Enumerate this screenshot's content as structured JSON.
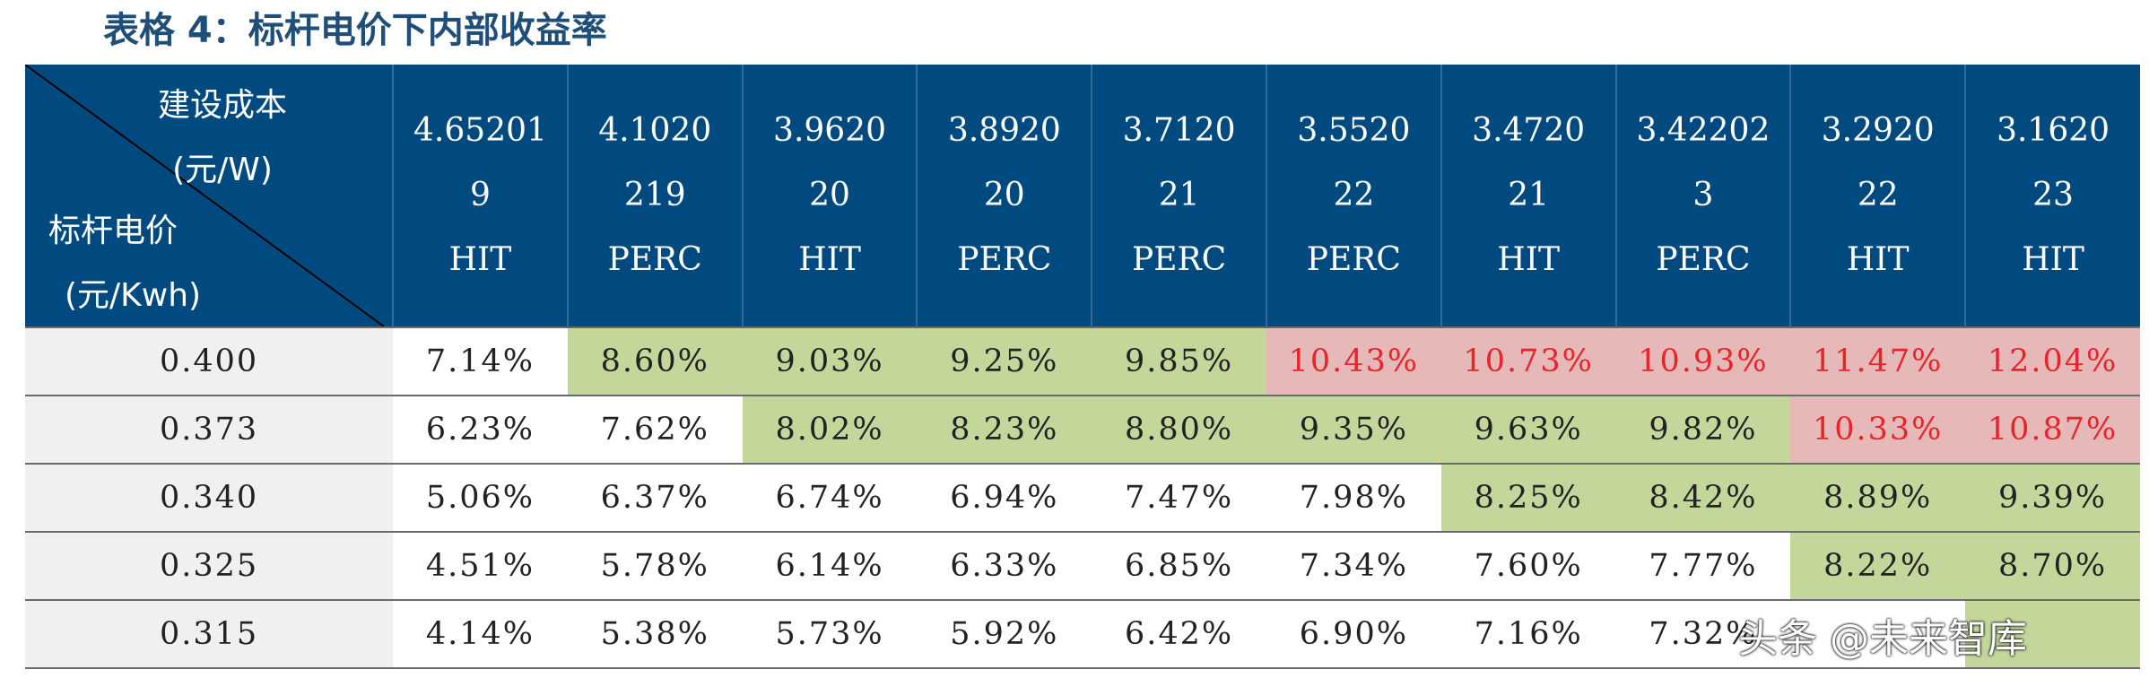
{
  "title": "表格 4：标杆电价下内部收益率",
  "corner": {
    "top_line1": "建设成本",
    "top_line2": "(元/W)",
    "bottom_line1": "标杆电价",
    "bottom_line2": "(元/Kwh)"
  },
  "columns": [
    {
      "line1": "4.65201",
      "line2": "9",
      "line3": "HIT"
    },
    {
      "line1": "4.1020",
      "line2": "219",
      "line3": "PERC"
    },
    {
      "line1": "3.9620",
      "line2": "20",
      "line3": "HIT"
    },
    {
      "line1": "3.8920",
      "line2": "20",
      "line3": "PERC"
    },
    {
      "line1": "3.7120",
      "line2": "21",
      "line3": "PERC"
    },
    {
      "line1": "3.5520",
      "line2": "22",
      "line3": "PERC"
    },
    {
      "line1": "3.4720",
      "line2": "21",
      "line3": "HIT"
    },
    {
      "line1": "3.42202",
      "line2": "3",
      "line3": "PERC"
    },
    {
      "line1": "3.2920",
      "line2": "22",
      "line3": "HIT"
    },
    {
      "line1": "3.1620",
      "line2": "23",
      "line3": "HIT"
    }
  ],
  "rows": [
    {
      "price": "0.400",
      "cells": [
        "7.14%",
        "8.60%",
        "9.03%",
        "9.25%",
        "9.85%",
        "10.43%",
        "10.73%",
        "10.93%",
        "11.47%",
        "12.04%"
      ]
    },
    {
      "price": "0.373",
      "cells": [
        "6.23%",
        "7.62%",
        "8.02%",
        "8.23%",
        "8.80%",
        "9.35%",
        "9.63%",
        "9.82%",
        "10.33%",
        "10.87%"
      ]
    },
    {
      "price": "0.340",
      "cells": [
        "5.06%",
        "6.37%",
        "6.74%",
        "6.94%",
        "7.47%",
        "7.98%",
        "8.25%",
        "8.42%",
        "8.89%",
        "9.39%"
      ]
    },
    {
      "price": "0.325",
      "cells": [
        "4.51%",
        "5.78%",
        "6.14%",
        "6.33%",
        "6.85%",
        "7.34%",
        "7.60%",
        "7.77%",
        "8.22%",
        "8.70%"
      ]
    },
    {
      "price": "0.315",
      "cells": [
        "4.14%",
        "5.38%",
        "5.73%",
        "5.92%",
        "6.42%",
        "6.90%",
        "7.16%",
        "7.32%",
        "",
        ""
      ]
    }
  ],
  "cell_styles": [
    [
      "",
      "g",
      "g",
      "g",
      "g",
      "r",
      "r",
      "r",
      "r",
      "r"
    ],
    [
      "",
      "",
      "g",
      "g",
      "g",
      "g",
      "g",
      "g",
      "r",
      "r"
    ],
    [
      "",
      "",
      "",
      "",
      "",
      "",
      "g",
      "g",
      "g",
      "g"
    ],
    [
      "",
      "",
      "",
      "",
      "",
      "",
      "",
      "",
      "g",
      "g"
    ],
    [
      "",
      "",
      "",
      "",
      "",
      "",
      "",
      "",
      "",
      "g"
    ]
  ],
  "colors": {
    "header_bg": "#004a80",
    "green": "#c4d79b",
    "red_bg": "#e6b8b7",
    "red_text": "#e8232a",
    "title": "#1f4e79"
  },
  "watermark": "头条 @未来智库"
}
